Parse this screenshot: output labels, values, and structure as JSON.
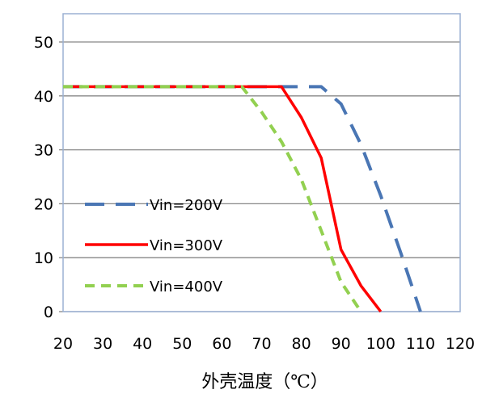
{
  "chart_data": {
    "type": "line",
    "title": "",
    "xlabel": "外壳温度（℃）",
    "ylabel": "",
    "xlim": [
      20,
      120
    ],
    "ylim": [
      0,
      55
    ],
    "xticks": [
      "20",
      "30",
      "40",
      "50",
      "60",
      "70",
      "80",
      "90",
      "100",
      "110",
      "120"
    ],
    "yticks": [
      "0",
      "10",
      "20",
      "30",
      "40",
      "50"
    ],
    "grid": "horizontal",
    "legend_position": "lower-left",
    "series": [
      {
        "name": "Vin=200V",
        "color": "#4a76b4",
        "style": "dashed",
        "x": [
          20,
          30,
          40,
          50,
          60,
          70,
          80,
          85,
          90,
          95,
          100,
          105,
          110
        ],
        "y": [
          41.7,
          41.7,
          41.7,
          41.7,
          41.7,
          41.7,
          41.7,
          41.7,
          38.5,
          31,
          21.5,
          11,
          0
        ]
      },
      {
        "name": "Vin=300V",
        "color": "#ff0000",
        "style": "solid",
        "x": [
          20,
          30,
          40,
          50,
          60,
          70,
          75,
          80,
          85,
          90,
          95,
          100
        ],
        "y": [
          41.7,
          41.7,
          41.7,
          41.7,
          41.7,
          41.7,
          41.7,
          36,
          28.5,
          11.5,
          4.8,
          0
        ]
      },
      {
        "name": "Vin=400V",
        "color": "#92d050",
        "style": "dashed",
        "x": [
          20,
          30,
          40,
          50,
          60,
          65,
          70,
          75,
          80,
          85,
          90,
          95
        ],
        "y": [
          41.7,
          41.7,
          41.7,
          41.7,
          41.7,
          41.7,
          37,
          31.5,
          24.5,
          15,
          5.5,
          0
        ]
      }
    ]
  }
}
